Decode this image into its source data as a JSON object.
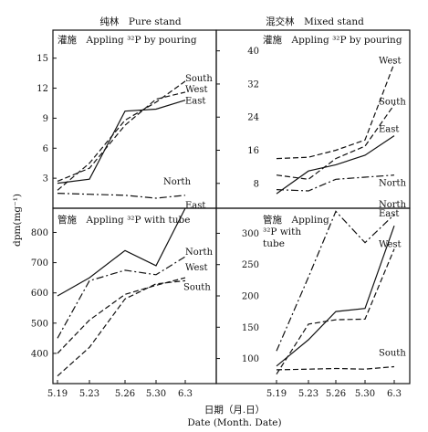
{
  "column_titles": [
    "纯林　Pure stand",
    "混交林　Mixed stand"
  ],
  "ylabel": "dpm(mg⁻¹)",
  "xlabel_cn": "日期（月.日）",
  "xlabel_en": "Date (Month. Date)",
  "chart_data": [
    {
      "type": "line",
      "panel": "top-left",
      "title": "灌施　Appling ³²P by pouring",
      "categories": [
        "5.19",
        "5.23",
        "5.26",
        "5.30",
        "6.3"
      ],
      "yticks": [
        3,
        6,
        9,
        12,
        15
      ],
      "ylim": [
        0,
        17.8
      ],
      "grid": false,
      "series": [
        {
          "name": "South",
          "style": "dashed",
          "values": [
            1.8,
            4.5,
            8.8,
            10.6,
            12.7
          ]
        },
        {
          "name": "West",
          "style": "dashed",
          "values": [
            2.7,
            4.0,
            8.3,
            10.9,
            11.6
          ]
        },
        {
          "name": "East",
          "style": "solid",
          "values": [
            2.5,
            2.9,
            9.7,
            9.9,
            10.8
          ]
        },
        {
          "name": "North",
          "style": "dashdot",
          "values": [
            1.5,
            1.4,
            1.3,
            1.0,
            1.3
          ]
        }
      ]
    },
    {
      "type": "line",
      "panel": "top-right",
      "title": "灌施　Appling ³²P by pouring",
      "categories": [
        "5.19",
        "5.23",
        "5.26",
        "5.30",
        "6.3"
      ],
      "yticks": [
        8,
        16,
        24,
        32,
        40
      ],
      "ylim": [
        2,
        45
      ],
      "grid": false,
      "series": [
        {
          "name": "West",
          "style": "dashed",
          "values": [
            14.0,
            14.3,
            16.0,
            18.5,
            37.0
          ]
        },
        {
          "name": "South",
          "style": "dashed",
          "values": [
            10.0,
            9.0,
            14.0,
            17.0,
            27.0
          ]
        },
        {
          "name": "East",
          "style": "solid",
          "values": [
            5.5,
            11.0,
            12.5,
            14.8,
            19.5
          ]
        },
        {
          "name": "North",
          "style": "dashdot",
          "values": [
            6.5,
            6.2,
            9.0,
            9.5,
            10.0
          ]
        }
      ]
    },
    {
      "type": "line",
      "panel": "bottom-left",
      "title": "管施　Appling ³²P with tube",
      "categories": [
        "5.19",
        "5.23",
        "5.26",
        "5.30",
        "6.3"
      ],
      "yticks": [
        400,
        500,
        600,
        700,
        800
      ],
      "ylim": [
        300,
        880
      ],
      "grid": false,
      "series": [
        {
          "name": "East",
          "style": "solid",
          "values": [
            590,
            650,
            740,
            690,
            880
          ]
        },
        {
          "name": "North",
          "style": "dashdot",
          "values": [
            450,
            640,
            675,
            660,
            720
          ]
        },
        {
          "name": "West",
          "style": "dashed",
          "values": [
            400,
            510,
            595,
            625,
            650
          ]
        },
        {
          "name": "South",
          "style": "dashed",
          "values": [
            325,
            420,
            580,
            630,
            640
          ]
        }
      ]
    },
    {
      "type": "line",
      "panel": "bottom-right",
      "title": "管施　Appling ³²P with tube",
      "title_lines": [
        "管施　Appling",
        "³²P with",
        "tube"
      ],
      "categories": [
        "5.19",
        "5.23",
        "5.26",
        "5.30",
        "6.3"
      ],
      "yticks": [
        100,
        150,
        200,
        250,
        300
      ],
      "ylim": [
        60,
        340
      ],
      "grid": false,
      "series": [
        {
          "name": "North",
          "style": "dashdot",
          "values": [
            112,
            230,
            335,
            285,
            330
          ]
        },
        {
          "name": "East",
          "style": "solid",
          "values": [
            88,
            130,
            175,
            180,
            312
          ]
        },
        {
          "name": "West",
          "style": "dashed",
          "values": [
            75,
            155,
            162,
            163,
            275
          ]
        },
        {
          "name": "South",
          "style": "dashed",
          "values": [
            82,
            83,
            84,
            83,
            87
          ]
        }
      ]
    }
  ]
}
